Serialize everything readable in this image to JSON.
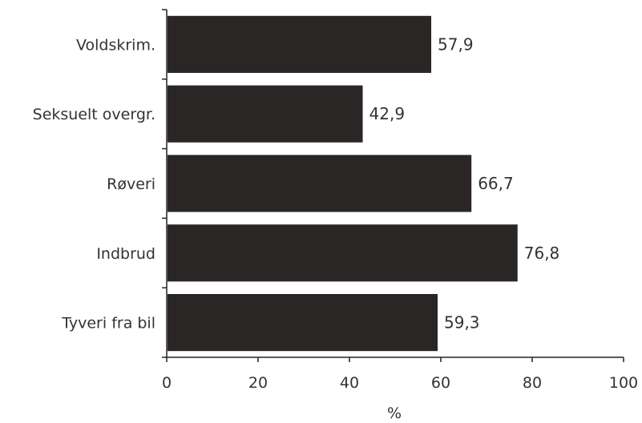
{
  "chart_data": {
    "type": "bar",
    "orientation": "horizontal",
    "categories": [
      "Voldskrim.",
      "Seksuelt overgr.",
      "Røveri",
      "Indbrud",
      "Tyveri fra bil"
    ],
    "values": [
      57.9,
      42.9,
      66.7,
      76.8,
      59.3
    ],
    "data_labels": [
      "57,9",
      "42,9",
      "66,7",
      "76,8",
      "59,3"
    ],
    "xlabel": "%",
    "ylabel": "",
    "xlim": [
      0,
      100
    ],
    "x_ticks": [
      0,
      20,
      40,
      60,
      80,
      100
    ],
    "x_tick_labels": [
      "0",
      "20",
      "40",
      "60",
      "80",
      "100"
    ],
    "bar_color": "#2a2626",
    "grid": false,
    "legend": "none"
  }
}
